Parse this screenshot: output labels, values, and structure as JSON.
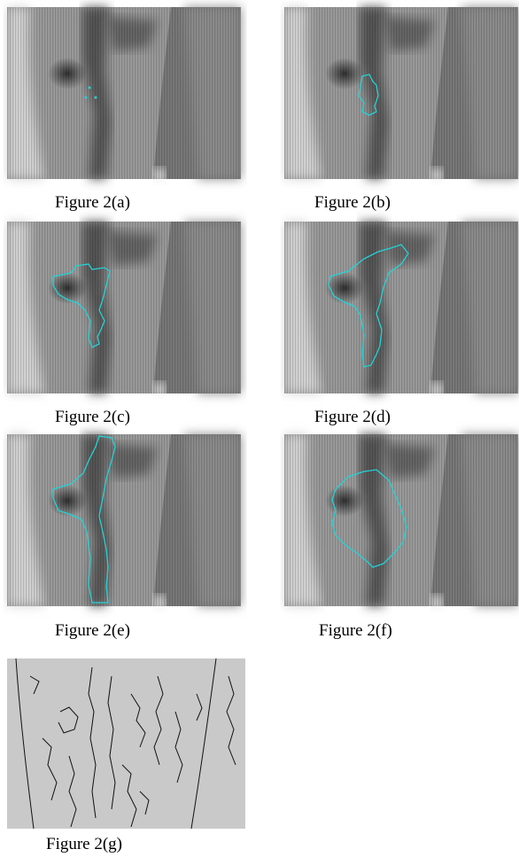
{
  "figures": [
    {
      "caption": "Figure 2(a)"
    },
    {
      "caption": "Figure 2(b)"
    },
    {
      "caption": "Figure 2(c)"
    },
    {
      "caption": "Figure 2(d)"
    },
    {
      "caption": "Figure 2(e)"
    },
    {
      "caption": "Figure 2(f)"
    },
    {
      "caption": "Figure 2(g)"
    }
  ]
}
